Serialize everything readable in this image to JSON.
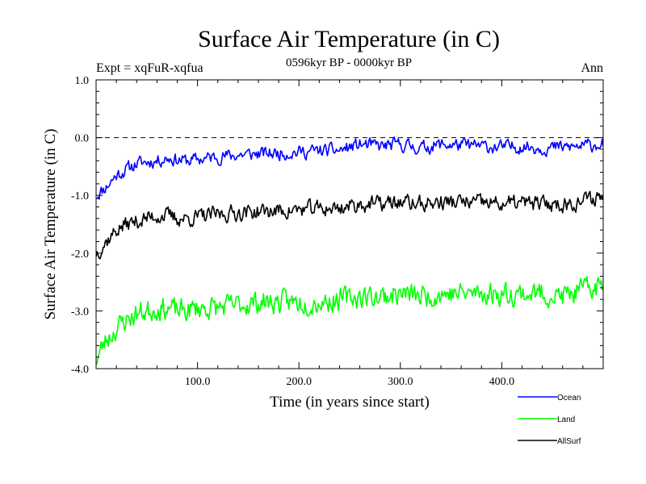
{
  "chart_data": {
    "type": "line",
    "title": "Surface Air Temperature (in C)",
    "subtitle": "0596kyr BP - 0000kyr BP",
    "left_label": "Expt = xqFuR-xqfua",
    "right_label": "Ann",
    "xlabel": "Time (in years since start)",
    "ylabel": "Surface Air Temperature (in C)",
    "xlim": [
      0,
      500
    ],
    "ylim": [
      -4.0,
      1.0
    ],
    "x_ticks": [
      100,
      200,
      300,
      400
    ],
    "x_tick_labels": [
      "100.0",
      "200.0",
      "300.0",
      "400.0"
    ],
    "y_ticks": [
      1.0,
      0.0,
      -1.0,
      -2.0,
      -3.0,
      -4.0
    ],
    "y_tick_labels": [
      "1.0",
      "0.0",
      "-1.0",
      "-2.0",
      "-3.0",
      "-4.0"
    ],
    "reference_line": 0.0,
    "n_years": 500,
    "series": [
      {
        "name": "Ocean",
        "color": "#0000ff",
        "x": [
          0,
          10,
          20,
          30,
          40,
          50,
          60,
          70,
          80,
          90,
          100,
          120,
          140,
          160,
          180,
          200,
          220,
          240,
          260,
          280,
          300,
          320,
          340,
          360,
          380,
          400,
          420,
          440,
          460,
          480,
          500
        ],
        "values": [
          -1.0,
          -0.85,
          -0.65,
          -0.55,
          -0.45,
          -0.42,
          -0.4,
          -0.35,
          -0.38,
          -0.4,
          -0.38,
          -0.33,
          -0.3,
          -0.28,
          -0.27,
          -0.25,
          -0.23,
          -0.22,
          -0.12,
          -0.15,
          -0.12,
          -0.18,
          -0.12,
          -0.13,
          -0.15,
          -0.17,
          -0.15,
          -0.18,
          -0.17,
          -0.15,
          -0.1
        ],
        "noise": 0.1,
        "seed": 11
      },
      {
        "name": "Land",
        "color": "#00ff00",
        "x": [
          0,
          10,
          20,
          30,
          40,
          50,
          60,
          70,
          80,
          90,
          100,
          120,
          140,
          160,
          180,
          200,
          220,
          240,
          260,
          280,
          300,
          320,
          340,
          360,
          380,
          400,
          420,
          440,
          460,
          480,
          500
        ],
        "values": [
          -3.85,
          -3.5,
          -3.3,
          -3.15,
          -3.05,
          -3.0,
          -2.95,
          -2.95,
          -3.0,
          -3.0,
          -2.95,
          -2.95,
          -2.9,
          -2.85,
          -2.85,
          -2.85,
          -2.85,
          -2.8,
          -2.75,
          -2.75,
          -2.7,
          -2.75,
          -2.7,
          -2.7,
          -2.7,
          -2.7,
          -2.7,
          -2.7,
          -2.75,
          -2.65,
          -2.55
        ],
        "noise": 0.17,
        "seed": 23
      },
      {
        "name": "AllSurf",
        "color": "#000000",
        "x": [
          0,
          10,
          20,
          30,
          40,
          50,
          60,
          70,
          80,
          90,
          100,
          120,
          140,
          160,
          180,
          200,
          220,
          240,
          260,
          280,
          300,
          320,
          340,
          360,
          380,
          400,
          420,
          440,
          460,
          480,
          500
        ],
        "values": [
          -2.0,
          -1.8,
          -1.6,
          -1.5,
          -1.45,
          -1.4,
          -1.35,
          -1.35,
          -1.4,
          -1.4,
          -1.38,
          -1.33,
          -1.3,
          -1.28,
          -1.27,
          -1.25,
          -1.23,
          -1.22,
          -1.15,
          -1.15,
          -1.12,
          -1.15,
          -1.12,
          -1.12,
          -1.13,
          -1.15,
          -1.13,
          -1.15,
          -1.15,
          -1.1,
          -1.0
        ],
        "noise": 0.12,
        "seed": 37
      }
    ],
    "legend": {
      "placement": "bottom-right",
      "entries": [
        "Ocean",
        "Land",
        "AllSurf"
      ]
    }
  }
}
